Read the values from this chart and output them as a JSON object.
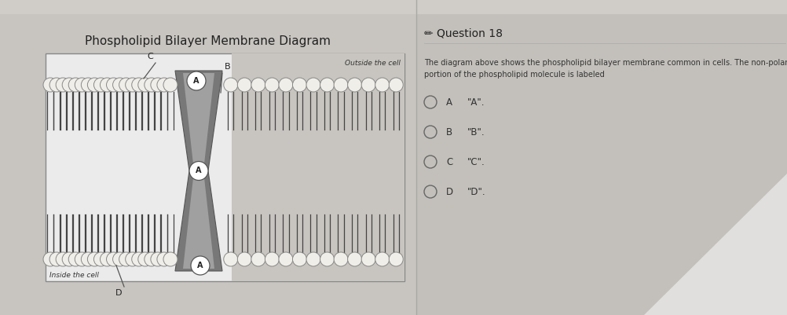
{
  "bg_left": "#c8c5c0",
  "bg_right": "#c5c2bc",
  "title": "Phospholipid Bilayer Membrane Diagram",
  "outside_label": "Outside the cell",
  "inside_label": "Inside the cell",
  "question_title": "Question 18",
  "question_text1": "The diagram above shows the phospholipid bilayer membrane common in cells. The non-polar",
  "question_text2": "portion of the phospholipid molecule is labeled",
  "options": [
    [
      "A",
      "\"A\"."
    ],
    [
      "B",
      "\"B\"."
    ],
    [
      "C",
      "\"C\"."
    ],
    [
      "D",
      "\"D\"."
    ]
  ],
  "diagram_bg_left": "#e8e6e2",
  "diagram_bg_right": "#c0bdb8",
  "protein_dark": "#707070",
  "protein_mid": "#909090",
  "head_fill": "#f0eee8",
  "head_edge": "#888888",
  "tail_color": "#444444",
  "label_circle_fill": "#ffffff",
  "label_circle_edge": "#555555"
}
